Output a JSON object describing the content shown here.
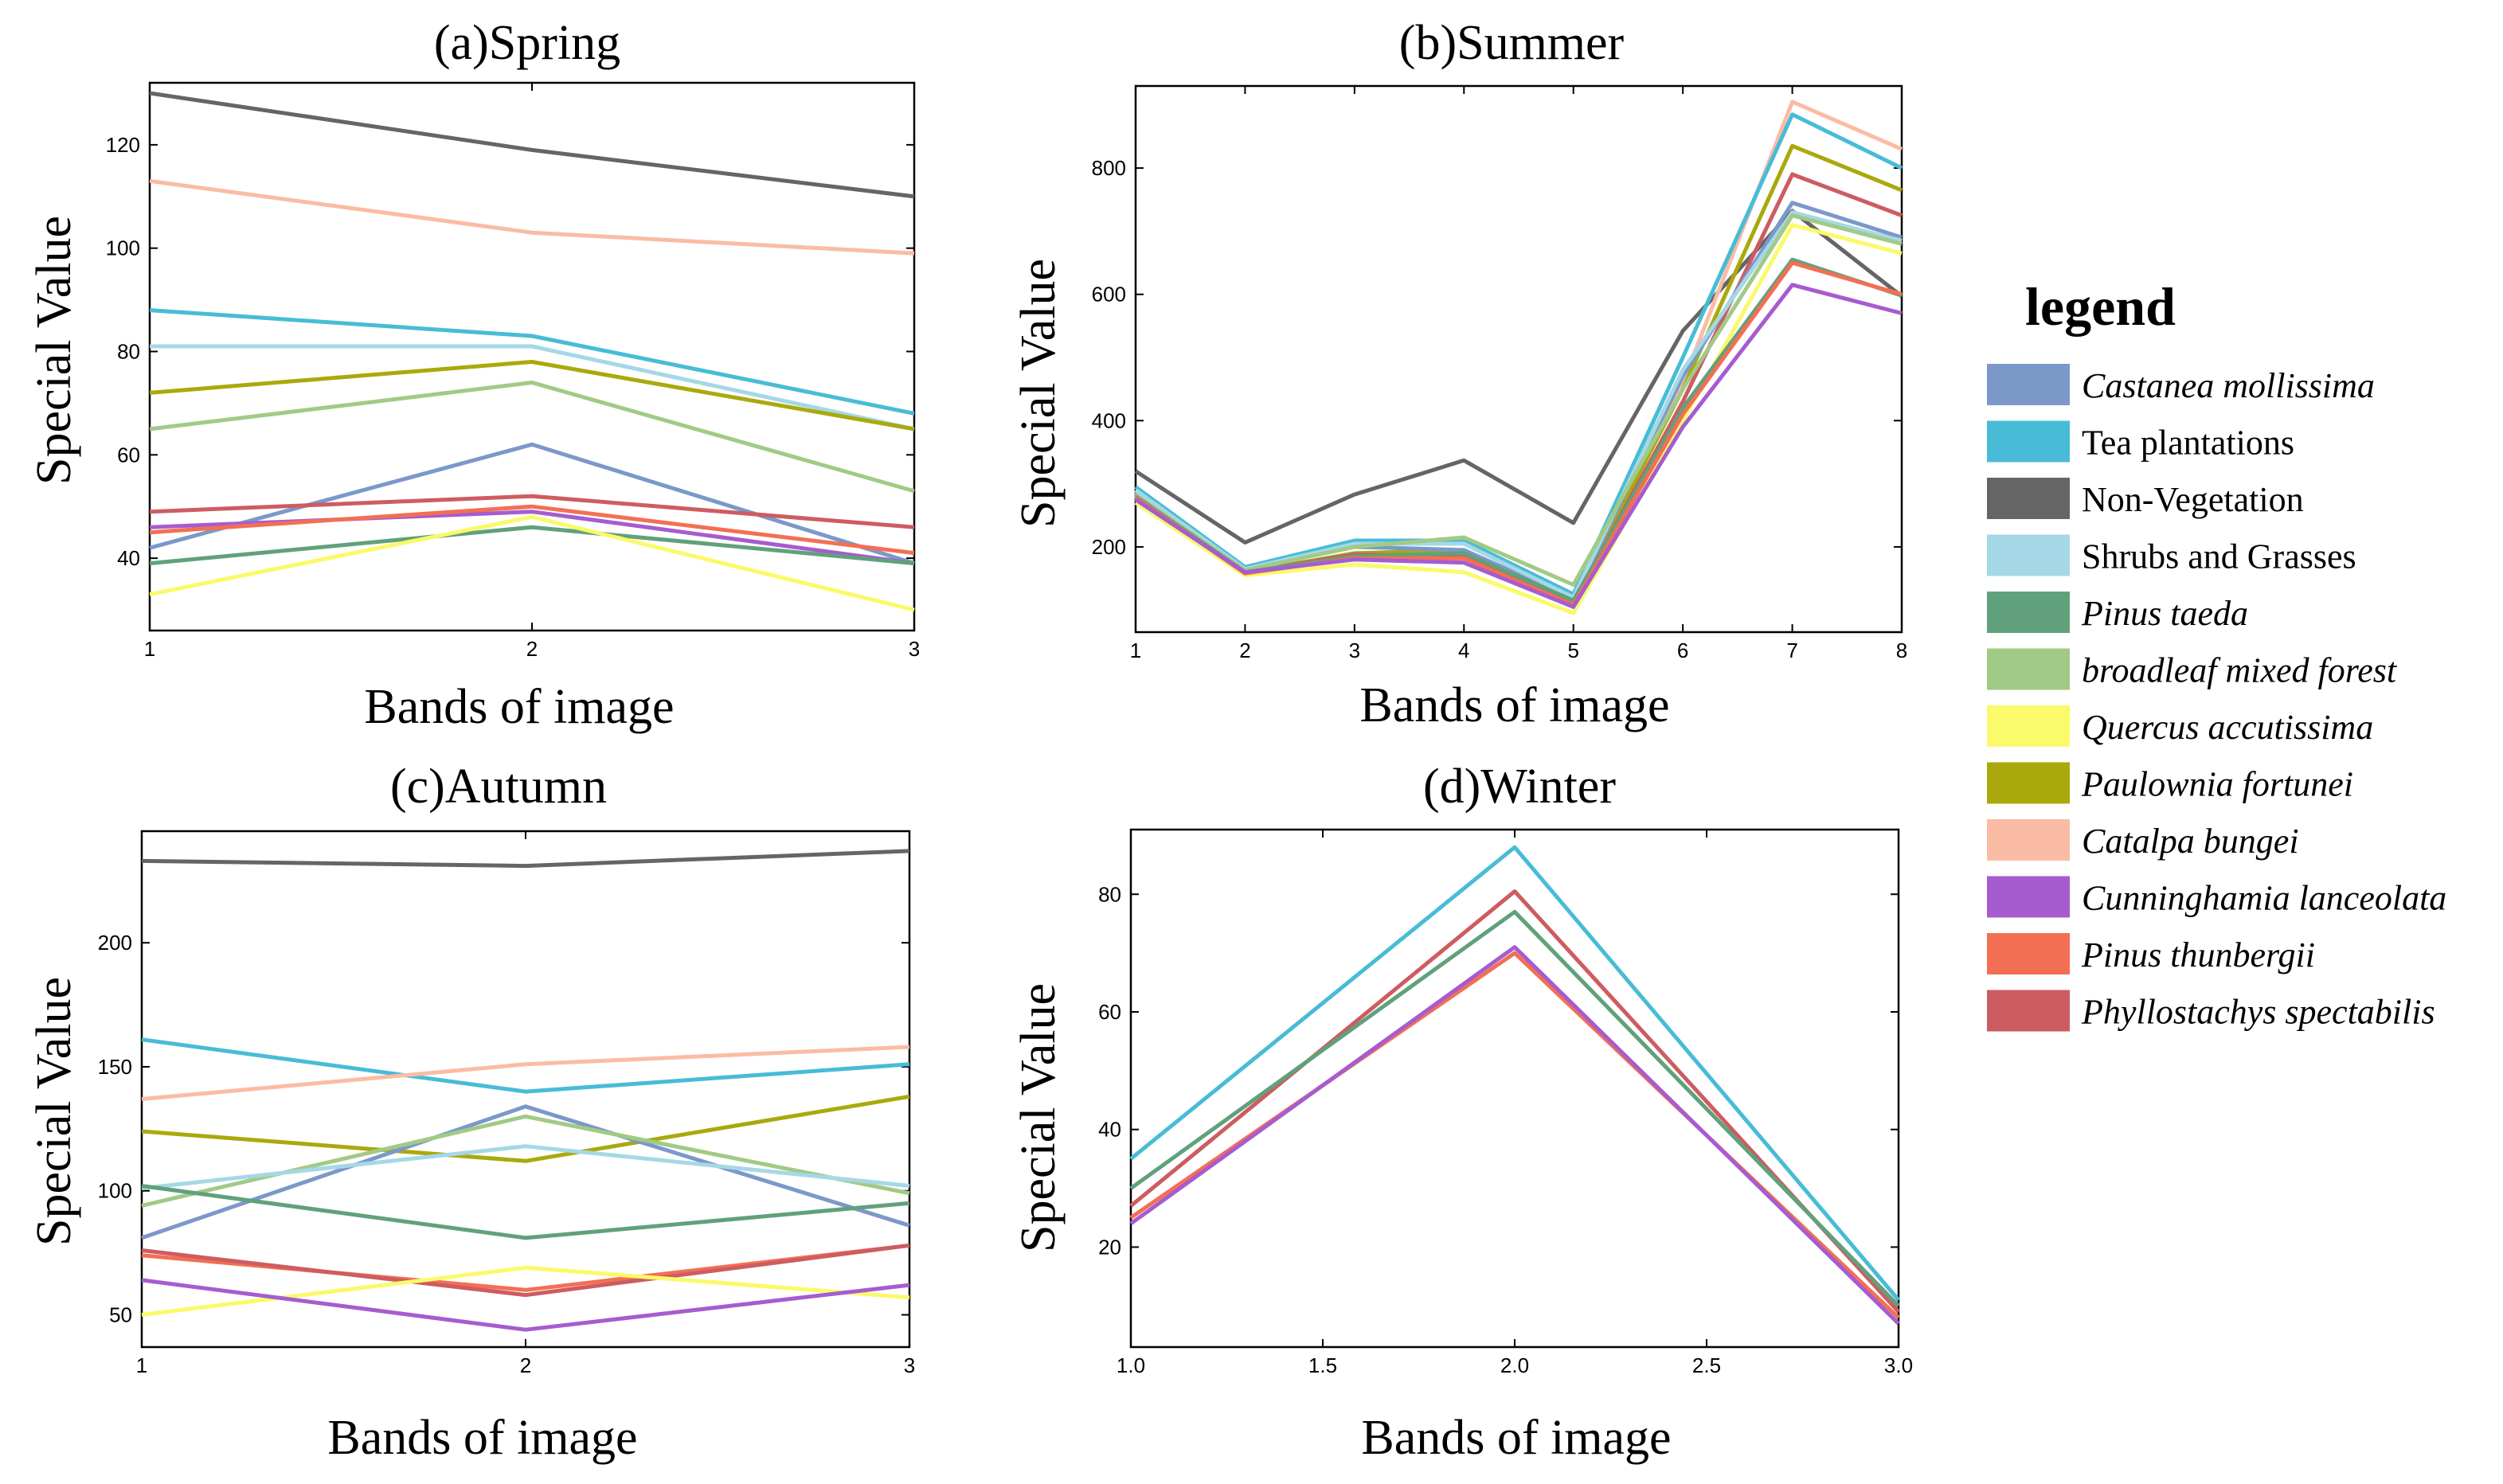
{
  "legend": {
    "title": "legend",
    "items": [
      {
        "label": "Castanea mollissima",
        "color": "#7b98c9",
        "italic": true
      },
      {
        "label": "Tea plantations",
        "color": "#48bcd6",
        "italic": false
      },
      {
        "label": "Non-Vegetation",
        "color": "#656565",
        "italic": false
      },
      {
        "label": "Shrubs and Grasses",
        "color": "#a5d8e6",
        "italic": false
      },
      {
        "label": "Pinus taeda",
        "color": "#60a17b",
        "italic": true
      },
      {
        "label": "broadleaf mixed forest",
        "color": "#a1ca86",
        "italic": true
      },
      {
        "label": "Quercus accutissima",
        "color": "#fafa6a",
        "italic": true
      },
      {
        "label": "Paulownia fortunei",
        "color": "#a9a90d",
        "italic": true
      },
      {
        "label": "Catalpa bungei",
        "color": "#fabca4",
        "italic": true
      },
      {
        "label": "Cunninghamia lanceolata",
        "color": "#a65ccf",
        "italic": true
      },
      {
        "label": "Pinus thunbergii",
        "color": "#f36f54",
        "italic": true
      },
      {
        "label": "Phyllostachys spectabilis",
        "color": "#cd5c61",
        "italic": true
      }
    ]
  },
  "chart_data": [
    {
      "type": "line",
      "title": "(a)Spring",
      "xlabel": "Bands of image",
      "ylabel": "Special Value",
      "x": [
        1,
        2,
        3
      ],
      "xticks": [
        "1",
        "2",
        "3"
      ],
      "xlim": [
        1,
        3
      ],
      "yticks": [
        40,
        60,
        80,
        100,
        120
      ],
      "ylim": [
        26,
        132
      ],
      "series": [
        {
          "name": "Non-Vegetation",
          "values": [
            130,
            119,
            110
          ]
        },
        {
          "name": "Catalpa bungei",
          "values": [
            113,
            103,
            99
          ]
        },
        {
          "name": "Tea plantations",
          "values": [
            88,
            83,
            68
          ]
        },
        {
          "name": "Shrubs and Grasses",
          "values": [
            81,
            81,
            65
          ]
        },
        {
          "name": "Paulownia fortunei",
          "values": [
            72,
            78,
            65
          ]
        },
        {
          "name": "broadleaf mixed forest",
          "values": [
            65,
            74,
            53
          ]
        },
        {
          "name": "Castanea mollissima",
          "values": [
            42,
            62,
            39
          ]
        },
        {
          "name": "Phyllostachys spectabilis",
          "values": [
            49,
            52,
            46
          ]
        },
        {
          "name": "Cunninghamia lanceolata",
          "values": [
            46,
            49,
            39
          ]
        },
        {
          "name": "Pinus thunbergii",
          "values": [
            45,
            50,
            41
          ]
        },
        {
          "name": "Pinus taeda",
          "values": [
            39,
            46,
            39
          ]
        },
        {
          "name": "Quercus accutissima",
          "values": [
            33,
            48,
            30
          ]
        }
      ]
    },
    {
      "type": "line",
      "title": "(b)Summer",
      "xlabel": "Bands of image",
      "ylabel": "Special Value",
      "x": [
        1,
        2,
        3,
        4,
        5,
        6,
        7,
        8
      ],
      "xticks": [
        "1",
        "2",
        "3",
        "4",
        "5",
        "6",
        "7",
        "8"
      ],
      "xlim": [
        1,
        8
      ],
      "yticks": [
        200,
        400,
        600,
        800
      ],
      "ylim": [
        65,
        930
      ],
      "series": [
        {
          "name": "Non-Vegetation",
          "values": [
            320,
            207,
            283,
            337,
            238,
            542,
            732,
            597
          ]
        },
        {
          "name": "Catalpa bungei",
          "values": [
            285,
            162,
            185,
            180,
            110,
            460,
            905,
            830
          ]
        },
        {
          "name": "Tea plantations",
          "values": [
            295,
            168,
            210,
            210,
            125,
            500,
            885,
            800
          ]
        },
        {
          "name": "Paulownia fortunei",
          "values": [
            282,
            160,
            190,
            195,
            115,
            450,
            835,
            765
          ]
        },
        {
          "name": "Phyllostachys spectabilis",
          "values": [
            280,
            160,
            188,
            185,
            112,
            430,
            790,
            725
          ]
        },
        {
          "name": "Castanea mollissima",
          "values": [
            288,
            165,
            200,
            195,
            118,
            470,
            745,
            690
          ]
        },
        {
          "name": "Shrubs and Grasses",
          "values": [
            290,
            165,
            205,
            205,
            120,
            480,
            730,
            685
          ]
        },
        {
          "name": "broadleaf mixed forest",
          "values": [
            282,
            163,
            200,
            215,
            140,
            450,
            725,
            680
          ]
        },
        {
          "name": "Quercus accutissima",
          "values": [
            270,
            155,
            172,
            160,
            95,
            400,
            710,
            665
          ]
        },
        {
          "name": "Pinus taeda",
          "values": [
            280,
            160,
            185,
            190,
            115,
            420,
            655,
            598
          ]
        },
        {
          "name": "Pinus thunbergii",
          "values": [
            278,
            158,
            182,
            182,
            108,
            410,
            650,
            600
          ]
        },
        {
          "name": "Cunninghamia lanceolata",
          "values": [
            275,
            160,
            180,
            175,
            105,
            390,
            615,
            570
          ]
        }
      ]
    },
    {
      "type": "line",
      "title": "(c)Autumn",
      "xlabel": "Bands of image",
      "ylabel": "Special Value",
      "x": [
        1,
        2,
        3
      ],
      "xticks": [
        "1",
        "2",
        "3"
      ],
      "xlim": [
        1,
        3
      ],
      "yticks": [
        50,
        100,
        150,
        200
      ],
      "ylim": [
        37,
        245
      ],
      "series": [
        {
          "name": "Non-Vegetation",
          "values": [
            233,
            231,
            237
          ]
        },
        {
          "name": "Tea plantations",
          "values": [
            161,
            140,
            151
          ]
        },
        {
          "name": "Catalpa bungei",
          "values": [
            137,
            151,
            158
          ]
        },
        {
          "name": "Paulownia fortunei",
          "values": [
            124,
            112,
            138
          ]
        },
        {
          "name": "Castanea mollissima",
          "values": [
            81,
            134,
            86
          ]
        },
        {
          "name": "broadleaf mixed forest",
          "values": [
            94,
            130,
            99
          ]
        },
        {
          "name": "Shrubs and Grasses",
          "values": [
            101,
            118,
            102
          ]
        },
        {
          "name": "Pinus taeda",
          "values": [
            102,
            81,
            95
          ]
        },
        {
          "name": "Pinus thunbergii",
          "values": [
            74,
            60,
            78
          ]
        },
        {
          "name": "Phyllostachys spectabilis",
          "values": [
            76,
            58,
            78
          ]
        },
        {
          "name": "Quercus accutissima",
          "values": [
            50,
            69,
            57
          ]
        },
        {
          "name": "Cunninghamia lanceolata",
          "values": [
            64,
            44,
            62
          ]
        }
      ]
    },
    {
      "type": "line",
      "title": "(d)Winter",
      "xlabel": "Bands of image",
      "ylabel": "Special Value",
      "x": [
        1.0,
        2.0,
        3.0
      ],
      "xticks": [
        "1.0",
        "1.5",
        "2.0",
        "2.5",
        "3.0"
      ],
      "xtick_values": [
        1.0,
        1.5,
        2.0,
        2.5,
        3.0
      ],
      "xlim": [
        1.0,
        3.0
      ],
      "yticks": [
        20,
        40,
        60,
        80
      ],
      "ylim": [
        3,
        91
      ],
      "series": [
        {
          "name": "Tea plantations",
          "values": [
            35,
            88,
            11
          ]
        },
        {
          "name": "Phyllostachys spectabilis",
          "values": [
            27,
            80.5,
            9
          ]
        },
        {
          "name": "Pinus taeda",
          "values": [
            30,
            77,
            10
          ]
        },
        {
          "name": "Pinus thunbergii",
          "values": [
            25,
            70,
            8
          ]
        },
        {
          "name": "Cunninghamia lanceolata",
          "values": [
            24,
            71,
            7
          ]
        }
      ]
    }
  ]
}
